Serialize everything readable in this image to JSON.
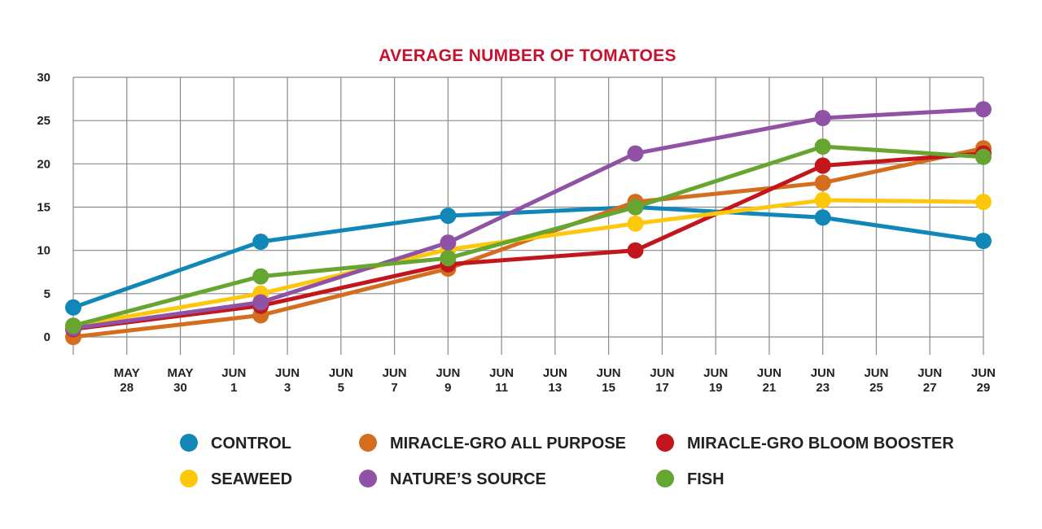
{
  "chart_data": {
    "type": "line",
    "title": "AVERAGE NUMBER OF TOMATOES",
    "xlabel": "",
    "ylabel": "",
    "ylim": [
      0,
      30
    ],
    "y_ticks": [
      "0",
      "5",
      "10",
      "15",
      "20",
      "25",
      "30"
    ],
    "x_ticks": [
      {
        "date": "05-28",
        "line1": "MAY",
        "line2": "28"
      },
      {
        "date": "05-30",
        "line1": "MAY",
        "line2": "30"
      },
      {
        "date": "06-01",
        "line1": "JUN",
        "line2": "1"
      },
      {
        "date": "06-03",
        "line1": "JUN",
        "line2": "3"
      },
      {
        "date": "06-05",
        "line1": "JUN",
        "line2": "5"
      },
      {
        "date": "06-07",
        "line1": "JUN",
        "line2": "7"
      },
      {
        "date": "06-09",
        "line1": "JUN",
        "line2": "9"
      },
      {
        "date": "06-11",
        "line1": "JUN",
        "line2": "11"
      },
      {
        "date": "06-13",
        "line1": "JUN",
        "line2": "13"
      },
      {
        "date": "06-15",
        "line1": "JUN",
        "line2": "15"
      },
      {
        "date": "06-17",
        "line1": "JUN",
        "line2": "17"
      },
      {
        "date": "06-19",
        "line1": "JUN",
        "line2": "19"
      },
      {
        "date": "06-21",
        "line1": "JUN",
        "line2": "21"
      },
      {
        "date": "06-23",
        "line1": "JUN",
        "line2": "23"
      },
      {
        "date": "06-25",
        "line1": "JUN",
        "line2": "25"
      },
      {
        "date": "06-27",
        "line1": "JUN",
        "line2": "27"
      },
      {
        "date": "06-29",
        "line1": "JUN",
        "line2": "29"
      }
    ],
    "x_range": [
      "05-26",
      "06-29"
    ],
    "grid": true,
    "legend_position": "bottom",
    "series": [
      {
        "name": "CONTROL",
        "color": "#1187b8",
        "points": [
          [
            "05-26",
            3.4
          ],
          [
            "06-02",
            11.0
          ],
          [
            "06-09",
            14.0
          ],
          [
            "06-16",
            15.0
          ],
          [
            "06-23",
            13.8
          ],
          [
            "06-29",
            11.1
          ]
        ]
      },
      {
        "name": "MIRACLE-GRO ALL PURPOSE",
        "color": "#d46d1e",
        "points": [
          [
            "05-26",
            0.0
          ],
          [
            "06-02",
            2.5
          ],
          [
            "06-09",
            7.9
          ],
          [
            "06-16",
            15.6
          ],
          [
            "06-23",
            17.8
          ],
          [
            "06-29",
            21.8
          ]
        ]
      },
      {
        "name": "MIRACLE-GRO BLOOM BOOSTER",
        "color": "#c3161c",
        "points": [
          [
            "05-26",
            0.9
          ],
          [
            "06-02",
            3.6
          ],
          [
            "06-09",
            8.4
          ],
          [
            "06-16",
            10.0
          ],
          [
            "06-23",
            19.8
          ],
          [
            "06-29",
            21.2
          ]
        ]
      },
      {
        "name": "SEAWEED",
        "color": "#fdc70c",
        "points": [
          [
            "05-26",
            1.3
          ],
          [
            "06-02",
            5.0
          ],
          [
            "06-09",
            10.1
          ],
          [
            "06-16",
            13.1
          ],
          [
            "06-23",
            15.8
          ],
          [
            "06-29",
            15.6
          ]
        ]
      },
      {
        "name": "NATURE’S SOURCE",
        "color": "#9052a5",
        "points": [
          [
            "05-26",
            1.0
          ],
          [
            "06-02",
            4.0
          ],
          [
            "06-09",
            10.9
          ],
          [
            "06-16",
            21.2
          ],
          [
            "06-23",
            25.3
          ],
          [
            "06-29",
            26.3
          ]
        ]
      },
      {
        "name": "FISH",
        "color": "#67a531",
        "points": [
          [
            "05-26",
            1.3
          ],
          [
            "06-02",
            7.0
          ],
          [
            "06-09",
            9.1
          ],
          [
            "06-16",
            15.0
          ],
          [
            "06-23",
            22.0
          ],
          [
            "06-29",
            20.8
          ]
        ]
      }
    ]
  }
}
